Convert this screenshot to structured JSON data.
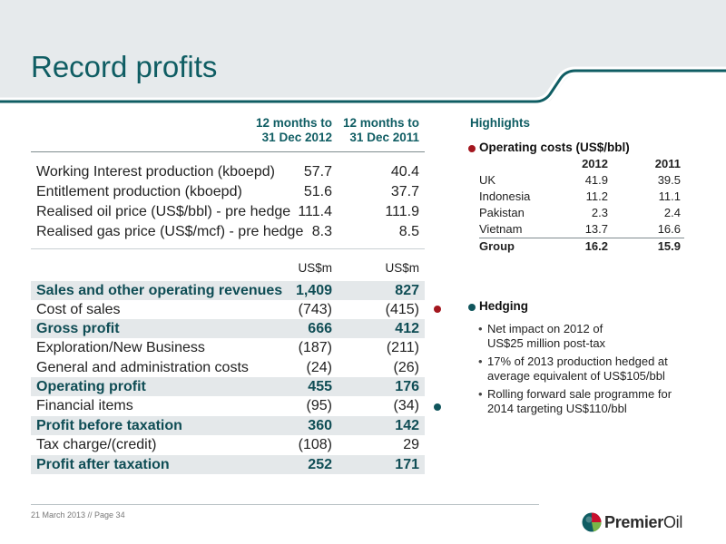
{
  "title": "Record profits",
  "columns": {
    "col1": [
      "12 months to",
      "31 Dec 2012"
    ],
    "col2": [
      "12 months to",
      "31 Dec 2011"
    ]
  },
  "production": [
    {
      "label": "Working Interest production (kboepd)",
      "v1": "57.7",
      "v2": "40.4"
    },
    {
      "label": "Entitlement production (kboepd)",
      "v1": "51.6",
      "v2": "37.7"
    },
    {
      "label": "Realised oil price (US$/bbl) - pre hedge",
      "v1": "111.4",
      "v2": "111.9"
    },
    {
      "label": "Realised gas price (US$/mcf) - pre hedge",
      "v1": "8.3",
      "v2": "8.5"
    }
  ],
  "units": {
    "v1": "US$m",
    "v2": "US$m"
  },
  "financials": [
    {
      "label": "Sales and other operating revenues",
      "v1": "1,409",
      "v2": "827",
      "highlight": true
    },
    {
      "label": "Cost of sales",
      "v1": "(743)",
      "v2": "(415)",
      "highlight": false
    },
    {
      "label": "Gross profit",
      "v1": "666",
      "v2": "412",
      "highlight": true
    },
    {
      "label": "Exploration/New Business",
      "v1": "(187)",
      "v2": "(211)",
      "highlight": false
    },
    {
      "label": "General and administration costs",
      "v1": "(24)",
      "v2": "(26)",
      "highlight": false
    },
    {
      "label": "Operating profit",
      "v1": "455",
      "v2": "176",
      "highlight": true
    },
    {
      "label": "Financial items",
      "v1": "(95)",
      "v2": "(34)",
      "highlight": false
    },
    {
      "label": "Profit before taxation",
      "v1": "360",
      "v2": "142",
      "highlight": true
    },
    {
      "label": "Tax charge/(credit)",
      "v1": "(108)",
      "v2": "29",
      "highlight": false
    },
    {
      "label": "Profit after taxation",
      "v1": "252",
      "v2": "171",
      "highlight": true
    }
  ],
  "highlights": {
    "title": "Highlights",
    "operating_costs": {
      "title": "Operating costs (US$/bbl)",
      "header": [
        "",
        "2012",
        "2011"
      ],
      "rows": [
        {
          "name": "UK",
          "y2012": "41.9",
          "y2011": "39.5"
        },
        {
          "name": "Indonesia",
          "y2012": "11.2",
          "y2011": "11.1"
        },
        {
          "name": "Pakistan",
          "y2012": "2.3",
          "y2011": "2.4"
        },
        {
          "name": "Vietnam",
          "y2012": "13.7",
          "y2011": "16.6"
        }
      ],
      "group": {
        "name": "Group",
        "y2012": "16.2",
        "y2011": "15.9"
      }
    },
    "hedging": {
      "title": "Hedging",
      "bullets": [
        [
          "Net impact on 2012 of",
          "US$25 million post-tax"
        ],
        [
          "17% of 2013 production hedged at",
          "average equivalent of US$105/bbl"
        ],
        [
          "Rolling forward sale programme for",
          "2014 targeting US$110/bbl"
        ]
      ]
    }
  },
  "footer": "21 March 2013 // Page 34",
  "logo": {
    "part1": "Premier",
    "part2": "Oil"
  },
  "colors": {
    "teal": "#0f5d63",
    "red_dot": "#a3161e",
    "teal_dot": "#10555c",
    "band": "#e6eaec"
  },
  "icons": [
    "logo-globe-icon"
  ]
}
